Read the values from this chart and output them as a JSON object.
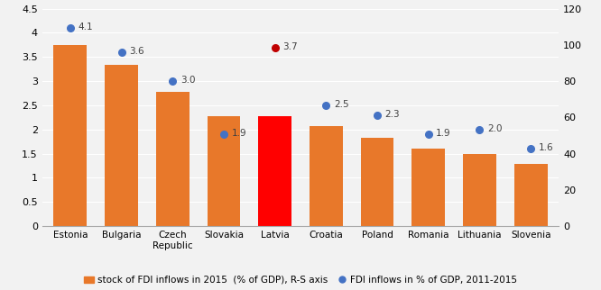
{
  "categories": [
    "Estonia",
    "Bulgaria",
    "Czech\nRepublic",
    "Slovakia",
    "Latvia",
    "Croatia",
    "Poland",
    "Romania",
    "Lithuania",
    "Slovenia"
  ],
  "bar_values": [
    3.75,
    3.33,
    2.78,
    2.27,
    2.27,
    2.07,
    1.82,
    1.6,
    1.5,
    1.28
  ],
  "dot_values": [
    4.1,
    3.6,
    3.0,
    1.9,
    3.7,
    2.5,
    2.3,
    1.9,
    2.0,
    1.6
  ],
  "bar_colors": [
    "#E8782A",
    "#E8782A",
    "#E8782A",
    "#E8782A",
    "#FF0000",
    "#E8782A",
    "#E8782A",
    "#E8782A",
    "#E8782A",
    "#E8782A"
  ],
  "dot_color_default": "#4472C4",
  "dot_color_latvia": "#C00000",
  "left_ylim": [
    0,
    4.5
  ],
  "left_yticks": [
    0,
    0.5,
    1.0,
    1.5,
    2.0,
    2.5,
    3.0,
    3.5,
    4.0,
    4.5
  ],
  "left_yticklabels": [
    "0",
    "0.5",
    "1",
    "1.5",
    "2",
    "2.5",
    "3",
    "3.5",
    "4",
    "4.5"
  ],
  "right_ylim": [
    0,
    120
  ],
  "right_yticks": [
    0,
    20,
    40,
    60,
    80,
    100,
    120
  ],
  "right_yticklabels": [
    "0",
    "20",
    "40",
    "60",
    "80",
    "100",
    "120"
  ],
  "legend_bar_label": "stock of FDI inflows in 2015  (% of GDP), R-S axis",
  "legend_dot_label": "FDI inflows in % of GDP, 2011-2015",
  "background_color": "#F2F2F2",
  "plot_bg_color": "#F2F2F2",
  "grid_color": "#FFFFFF",
  "annotation_color": "#404040"
}
